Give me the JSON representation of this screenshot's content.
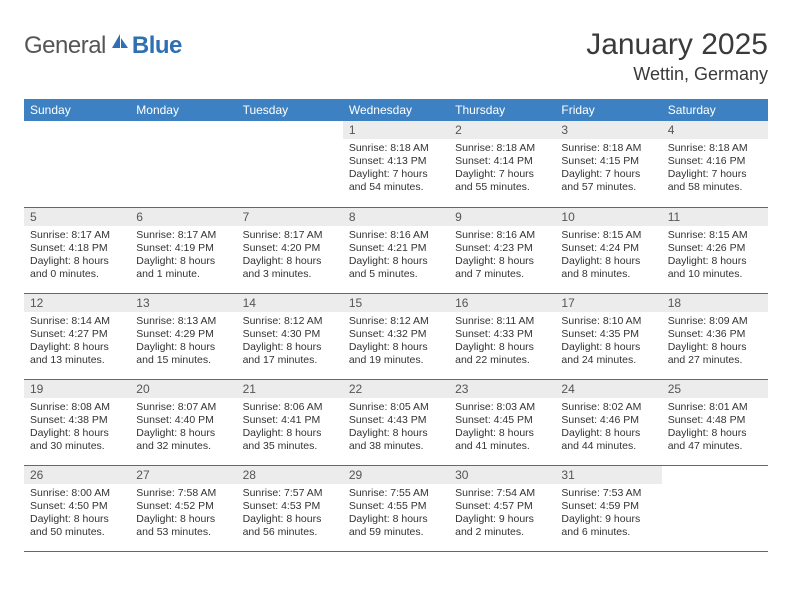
{
  "logo": {
    "general": "General",
    "blue": "Blue"
  },
  "title": "January 2025",
  "location": "Wettin, Germany",
  "colors": {
    "header_bg": "#3d81c2",
    "header_fg": "#ffffff",
    "daynum_bg": "#ececec",
    "rule": "#3d6fa8",
    "logo_gray": "#555555",
    "logo_blue": "#2f6fb3"
  },
  "weekdays": [
    "Sunday",
    "Monday",
    "Tuesday",
    "Wednesday",
    "Thursday",
    "Friday",
    "Saturday"
  ],
  "weeks": [
    [
      null,
      null,
      null,
      {
        "n": "1",
        "sr": "Sunrise: 8:18 AM",
        "ss": "Sunset: 4:13 PM",
        "dl": "Daylight: 7 hours and 54 minutes."
      },
      {
        "n": "2",
        "sr": "Sunrise: 8:18 AM",
        "ss": "Sunset: 4:14 PM",
        "dl": "Daylight: 7 hours and 55 minutes."
      },
      {
        "n": "3",
        "sr": "Sunrise: 8:18 AM",
        "ss": "Sunset: 4:15 PM",
        "dl": "Daylight: 7 hours and 57 minutes."
      },
      {
        "n": "4",
        "sr": "Sunrise: 8:18 AM",
        "ss": "Sunset: 4:16 PM",
        "dl": "Daylight: 7 hours and 58 minutes."
      }
    ],
    [
      {
        "n": "5",
        "sr": "Sunrise: 8:17 AM",
        "ss": "Sunset: 4:18 PM",
        "dl": "Daylight: 8 hours and 0 minutes."
      },
      {
        "n": "6",
        "sr": "Sunrise: 8:17 AM",
        "ss": "Sunset: 4:19 PM",
        "dl": "Daylight: 8 hours and 1 minute."
      },
      {
        "n": "7",
        "sr": "Sunrise: 8:17 AM",
        "ss": "Sunset: 4:20 PM",
        "dl": "Daylight: 8 hours and 3 minutes."
      },
      {
        "n": "8",
        "sr": "Sunrise: 8:16 AM",
        "ss": "Sunset: 4:21 PM",
        "dl": "Daylight: 8 hours and 5 minutes."
      },
      {
        "n": "9",
        "sr": "Sunrise: 8:16 AM",
        "ss": "Sunset: 4:23 PM",
        "dl": "Daylight: 8 hours and 7 minutes."
      },
      {
        "n": "10",
        "sr": "Sunrise: 8:15 AM",
        "ss": "Sunset: 4:24 PM",
        "dl": "Daylight: 8 hours and 8 minutes."
      },
      {
        "n": "11",
        "sr": "Sunrise: 8:15 AM",
        "ss": "Sunset: 4:26 PM",
        "dl": "Daylight: 8 hours and 10 minutes."
      }
    ],
    [
      {
        "n": "12",
        "sr": "Sunrise: 8:14 AM",
        "ss": "Sunset: 4:27 PM",
        "dl": "Daylight: 8 hours and 13 minutes."
      },
      {
        "n": "13",
        "sr": "Sunrise: 8:13 AM",
        "ss": "Sunset: 4:29 PM",
        "dl": "Daylight: 8 hours and 15 minutes."
      },
      {
        "n": "14",
        "sr": "Sunrise: 8:12 AM",
        "ss": "Sunset: 4:30 PM",
        "dl": "Daylight: 8 hours and 17 minutes."
      },
      {
        "n": "15",
        "sr": "Sunrise: 8:12 AM",
        "ss": "Sunset: 4:32 PM",
        "dl": "Daylight: 8 hours and 19 minutes."
      },
      {
        "n": "16",
        "sr": "Sunrise: 8:11 AM",
        "ss": "Sunset: 4:33 PM",
        "dl": "Daylight: 8 hours and 22 minutes."
      },
      {
        "n": "17",
        "sr": "Sunrise: 8:10 AM",
        "ss": "Sunset: 4:35 PM",
        "dl": "Daylight: 8 hours and 24 minutes."
      },
      {
        "n": "18",
        "sr": "Sunrise: 8:09 AM",
        "ss": "Sunset: 4:36 PM",
        "dl": "Daylight: 8 hours and 27 minutes."
      }
    ],
    [
      {
        "n": "19",
        "sr": "Sunrise: 8:08 AM",
        "ss": "Sunset: 4:38 PM",
        "dl": "Daylight: 8 hours and 30 minutes."
      },
      {
        "n": "20",
        "sr": "Sunrise: 8:07 AM",
        "ss": "Sunset: 4:40 PM",
        "dl": "Daylight: 8 hours and 32 minutes."
      },
      {
        "n": "21",
        "sr": "Sunrise: 8:06 AM",
        "ss": "Sunset: 4:41 PM",
        "dl": "Daylight: 8 hours and 35 minutes."
      },
      {
        "n": "22",
        "sr": "Sunrise: 8:05 AM",
        "ss": "Sunset: 4:43 PM",
        "dl": "Daylight: 8 hours and 38 minutes."
      },
      {
        "n": "23",
        "sr": "Sunrise: 8:03 AM",
        "ss": "Sunset: 4:45 PM",
        "dl": "Daylight: 8 hours and 41 minutes."
      },
      {
        "n": "24",
        "sr": "Sunrise: 8:02 AM",
        "ss": "Sunset: 4:46 PM",
        "dl": "Daylight: 8 hours and 44 minutes."
      },
      {
        "n": "25",
        "sr": "Sunrise: 8:01 AM",
        "ss": "Sunset: 4:48 PM",
        "dl": "Daylight: 8 hours and 47 minutes."
      }
    ],
    [
      {
        "n": "26",
        "sr": "Sunrise: 8:00 AM",
        "ss": "Sunset: 4:50 PM",
        "dl": "Daylight: 8 hours and 50 minutes."
      },
      {
        "n": "27",
        "sr": "Sunrise: 7:58 AM",
        "ss": "Sunset: 4:52 PM",
        "dl": "Daylight: 8 hours and 53 minutes."
      },
      {
        "n": "28",
        "sr": "Sunrise: 7:57 AM",
        "ss": "Sunset: 4:53 PM",
        "dl": "Daylight: 8 hours and 56 minutes."
      },
      {
        "n": "29",
        "sr": "Sunrise: 7:55 AM",
        "ss": "Sunset: 4:55 PM",
        "dl": "Daylight: 8 hours and 59 minutes."
      },
      {
        "n": "30",
        "sr": "Sunrise: 7:54 AM",
        "ss": "Sunset: 4:57 PM",
        "dl": "Daylight: 9 hours and 2 minutes."
      },
      {
        "n": "31",
        "sr": "Sunrise: 7:53 AM",
        "ss": "Sunset: 4:59 PM",
        "dl": "Daylight: 9 hours and 6 minutes."
      },
      null
    ]
  ]
}
